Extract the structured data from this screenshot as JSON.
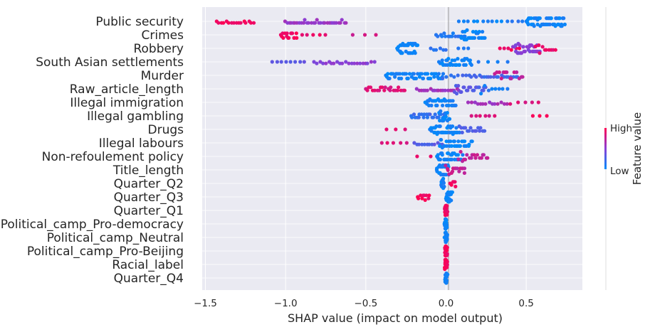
{
  "chart_data": {
    "type": "scatter",
    "subtype": "shap-beeswarm",
    "xlabel": "SHAP value (impact on model output)",
    "xlim": [
      -1.52,
      0.85
    ],
    "xticks": [
      -1.5,
      -1.0,
      -0.5,
      0.0,
      0.5
    ],
    "xtick_labels": [
      "−1.5",
      "−1.0",
      "−0.5",
      "0.0",
      "0.5"
    ],
    "grid": true,
    "colors": {
      "background": "#EAEAF2",
      "grid": "#FFFFFF",
      "low": "#008BFB",
      "high": "#FF0052",
      "zero_line": "#999999"
    },
    "colorbar": {
      "title": "Feature value",
      "high_label": "High",
      "low_label": "Low",
      "placement": "right"
    },
    "features": [
      {
        "name": "Public security",
        "points": [
          {
            "range": [
              -1.43,
              -1.2
            ],
            "n": 16,
            "value": 0.95
          },
          {
            "range": [
              -1.0,
              -0.62
            ],
            "n": 32,
            "value": 0.55
          },
          {
            "range": [
              0.08,
              0.35
            ],
            "n": 10,
            "value": 0.05
          },
          {
            "range": [
              0.5,
              0.74
            ],
            "n": 50,
            "value": 0.05
          },
          {
            "range": [
              0.38,
              0.48
            ],
            "n": 4,
            "value": 0.15
          }
        ]
      },
      {
        "name": "Crimes",
        "points": [
          {
            "range": [
              -1.03,
              -0.93
            ],
            "n": 16,
            "value": 0.95
          },
          {
            "range": [
              -0.9,
              -0.75
            ],
            "n": 5,
            "value": 0.9
          },
          {
            "range": [
              -0.58,
              -0.44
            ],
            "n": 3,
            "value": 0.8
          },
          {
            "range": [
              -0.06,
              0.12
            ],
            "n": 16,
            "value": 0.12
          },
          {
            "range": [
              0.1,
              0.24
            ],
            "n": 26,
            "value": 0.03
          }
        ]
      },
      {
        "name": "Robbery",
        "points": [
          {
            "range": [
              -0.3,
              -0.18
            ],
            "n": 32,
            "value": 0.05
          },
          {
            "range": [
              -0.1,
              0.0
            ],
            "n": 6,
            "value": 0.15
          },
          {
            "range": [
              0.08,
              0.14
            ],
            "n": 3,
            "value": 0.1
          },
          {
            "range": [
              0.34,
              0.46
            ],
            "n": 6,
            "value": 0.95
          },
          {
            "range": [
              0.42,
              0.58
            ],
            "n": 28,
            "value": 0.5
          },
          {
            "range": [
              0.56,
              0.68
            ],
            "n": 10,
            "value": 0.9
          }
        ]
      },
      {
        "name": "South Asian settlements",
        "points": [
          {
            "range": [
              -1.08,
              -0.88
            ],
            "n": 8,
            "value": 0.35
          },
          {
            "range": [
              -0.82,
              -0.45
            ],
            "n": 22,
            "value": 0.5
          },
          {
            "range": [
              -0.04,
              0.16
            ],
            "n": 32,
            "value": 0.05
          },
          {
            "range": [
              0.2,
              0.38
            ],
            "n": 4,
            "value": 0.1
          }
        ]
      },
      {
        "name": "Murder",
        "points": [
          {
            "range": [
              -0.38,
              -0.02
            ],
            "n": 50,
            "value": 0.05
          },
          {
            "range": [
              -0.02,
              0.1
            ],
            "n": 6,
            "value": 0.2
          },
          {
            "range": [
              0.13,
              0.45
            ],
            "n": 22,
            "value": 0.25
          },
          {
            "range": [
              0.3,
              0.48
            ],
            "n": 14,
            "value": 0.75
          }
        ]
      },
      {
        "name": "Raw_article_length",
        "points": [
          {
            "range": [
              -0.5,
              -0.26
            ],
            "n": 22,
            "value": 0.85
          },
          {
            "range": [
              -0.18,
              0.08
            ],
            "n": 20,
            "value": 0.6
          },
          {
            "range": [
              0.05,
              0.25
            ],
            "n": 22,
            "value": 0.3
          },
          {
            "range": [
              0.22,
              0.38
            ],
            "n": 8,
            "value": 0.1
          }
        ]
      },
      {
        "name": "Illegal immigration",
        "points": [
          {
            "range": [
              -0.13,
              0.06
            ],
            "n": 30,
            "value": 0.05
          },
          {
            "range": [
              0.14,
              0.38
            ],
            "n": 14,
            "value": 0.6
          },
          {
            "range": [
              0.4,
              0.58
            ],
            "n": 5,
            "value": 0.85
          }
        ]
      },
      {
        "name": "Illegal gambling",
        "points": [
          {
            "range": [
              -0.22,
              0.0
            ],
            "n": 24,
            "value": 0.2
          },
          {
            "range": [
              -0.04,
              0.02
            ],
            "n": 16,
            "value": 0.05
          },
          {
            "range": [
              0.16,
              0.3
            ],
            "n": 6,
            "value": 0.85
          },
          {
            "range": [
              0.54,
              0.63
            ],
            "n": 3,
            "value": 0.95
          }
        ]
      },
      {
        "name": "Drugs",
        "points": [
          {
            "range": [
              -0.37,
              -0.25
            ],
            "n": 3,
            "value": 0.9
          },
          {
            "range": [
              -0.1,
              0.08
            ],
            "n": 34,
            "value": 0.05
          },
          {
            "range": [
              0.08,
              0.24
            ],
            "n": 16,
            "value": 0.3
          }
        ]
      },
      {
        "name": "Illegal labours",
        "points": [
          {
            "range": [
              -0.4,
              -0.25
            ],
            "n": 5,
            "value": 0.85
          },
          {
            "range": [
              -0.2,
              -0.02
            ],
            "n": 12,
            "value": 0.3
          },
          {
            "range": [
              -0.04,
              0.16
            ],
            "n": 30,
            "value": 0.05
          }
        ]
      },
      {
        "name": "Non-refoulement policy",
        "points": [
          {
            "range": [
              -0.18,
              -0.1
            ],
            "n": 2,
            "value": 0.9
          },
          {
            "range": [
              -0.06,
              0.1
            ],
            "n": 30,
            "value": 0.05
          },
          {
            "range": [
              0.08,
              0.26
            ],
            "n": 18,
            "value": 0.75
          }
        ]
      },
      {
        "name": "Title_length",
        "points": [
          {
            "range": [
              -0.06,
              0.02
            ],
            "n": 22,
            "value": 0.05
          },
          {
            "range": [
              0.0,
              0.12
            ],
            "n": 16,
            "value": 0.75
          }
        ]
      },
      {
        "name": "Quarter_Q2",
        "points": [
          {
            "range": [
              -0.03,
              -0.01
            ],
            "n": 10,
            "value": 0.05
          },
          {
            "range": [
              0.03,
              0.06
            ],
            "n": 6,
            "value": 0.95
          }
        ]
      },
      {
        "name": "Quarter_Q3",
        "points": [
          {
            "range": [
              -0.18,
              -0.1
            ],
            "n": 10,
            "value": 0.95
          },
          {
            "range": [
              0.0,
              0.04
            ],
            "n": 18,
            "value": 0.05
          }
        ]
      },
      {
        "name": "Quarter_Q1",
        "points": [
          {
            "range": [
              -0.005,
              0.005
            ],
            "n": 22,
            "value": 0.95
          }
        ]
      },
      {
        "name": "Political_camp_Pro-democracy",
        "points": [
          {
            "range": [
              -0.005,
              0.005
            ],
            "n": 24,
            "value": 0.05
          }
        ]
      },
      {
        "name": "Political_camp_Neutral",
        "points": [
          {
            "range": [
              -0.005,
              0.005
            ],
            "n": 24,
            "value": 0.05
          }
        ]
      },
      {
        "name": "Political_camp_Pro-Beijing",
        "points": [
          {
            "range": [
              -0.005,
              0.005
            ],
            "n": 22,
            "value": 0.95
          }
        ]
      },
      {
        "name": "Racial_label",
        "points": [
          {
            "range": [
              -0.005,
              0.005
            ],
            "n": 22,
            "value": 0.95
          }
        ]
      },
      {
        "name": "Quarter_Q4",
        "points": [
          {
            "range": [
              -0.005,
              0.005
            ],
            "n": 22,
            "value": 0.05
          }
        ]
      }
    ]
  }
}
